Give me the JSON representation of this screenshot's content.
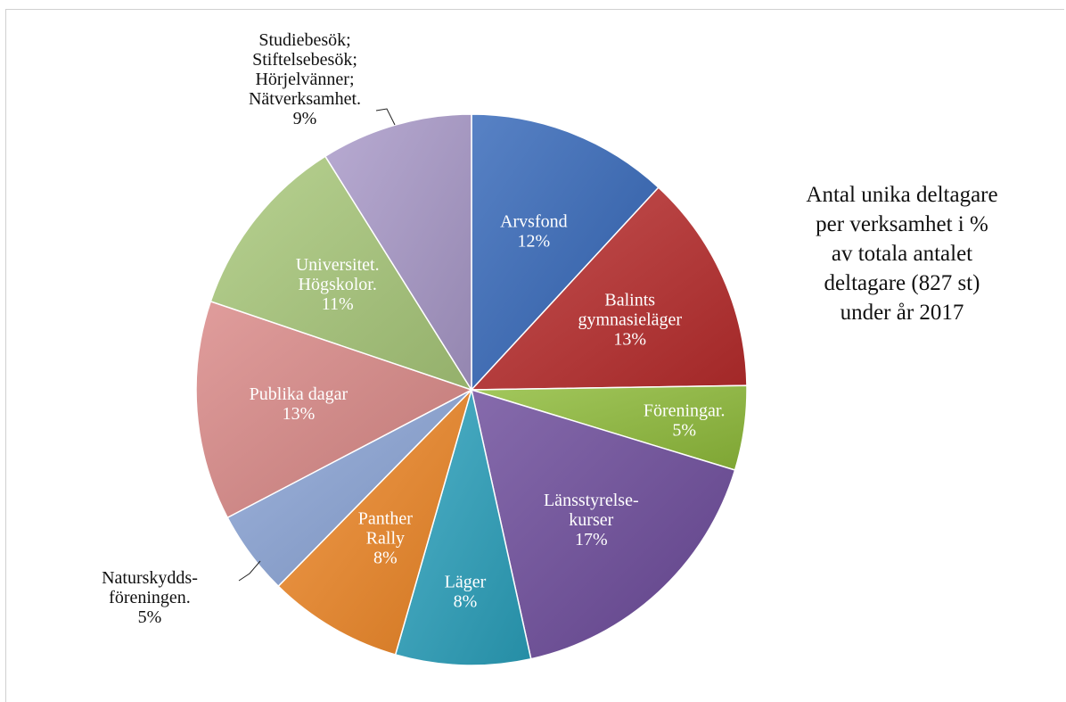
{
  "chart_data": {
    "type": "pie",
    "title_lines": [
      "Antal unika deltagare",
      "per verksamhet i %",
      "av totala antalet",
      "deltagare (827 st)",
      "under år 2017"
    ],
    "slices": [
      {
        "label_lines": [
          "Arvsfond"
        ],
        "value_label": "12%",
        "value": 12,
        "color": "#3366b8",
        "label_color": "#ffffff",
        "label_outside": false
      },
      {
        "label_lines": [
          "Balints",
          "gymnasieläger"
        ],
        "value_label": "13%",
        "value": 13,
        "color": "#b82c2c",
        "label_color": "#ffffff",
        "label_outside": false
      },
      {
        "label_lines": [
          "Föreningar."
        ],
        "value_label": "5%",
        "value": 5,
        "color": "#8fbc3a",
        "label_color": "#ffffff",
        "label_outside": false
      },
      {
        "label_lines": [
          "Länsstyrelse-",
          "kurser"
        ],
        "value_label": "17%",
        "value": 17,
        "color": "#6c4a9a",
        "label_color": "#ffffff",
        "label_outside": false
      },
      {
        "label_lines": [
          "Läger"
        ],
        "value_label": "8%",
        "value": 8,
        "color": "#2aa0bc",
        "label_color": "#ffffff",
        "label_outside": false
      },
      {
        "label_lines": [
          "Panther",
          "Rally"
        ],
        "value_label": "8%",
        "value": 8,
        "color": "#ee8626",
        "label_color": "#ffffff",
        "label_outside": false
      },
      {
        "label_lines": [
          "Naturskydds-",
          "föreningen."
        ],
        "value_label": "5%",
        "value": 5,
        "color": "#8aa4d6",
        "label_color": "#111111",
        "label_outside": true
      },
      {
        "label_lines": [
          "Publika dagar"
        ],
        "value_label": "13%",
        "value": 13,
        "color": "#d98886",
        "label_color": "#ffffff",
        "label_outside": false
      },
      {
        "label_lines": [
          "Universitet.",
          "Högskolor."
        ],
        "value_label": "11%",
        "value": 11,
        "color": "#a8c87a",
        "label_color": "#ffffff",
        "label_outside": false
      },
      {
        "label_lines": [
          "Studiebesök;",
          "Stiftelsebesök;",
          "Hörjelvänner;",
          "Nätverksamhet."
        ],
        "value_label": "9%",
        "value": 9,
        "color": "#a898c8",
        "label_color": "#111111",
        "label_outside": true
      }
    ]
  }
}
